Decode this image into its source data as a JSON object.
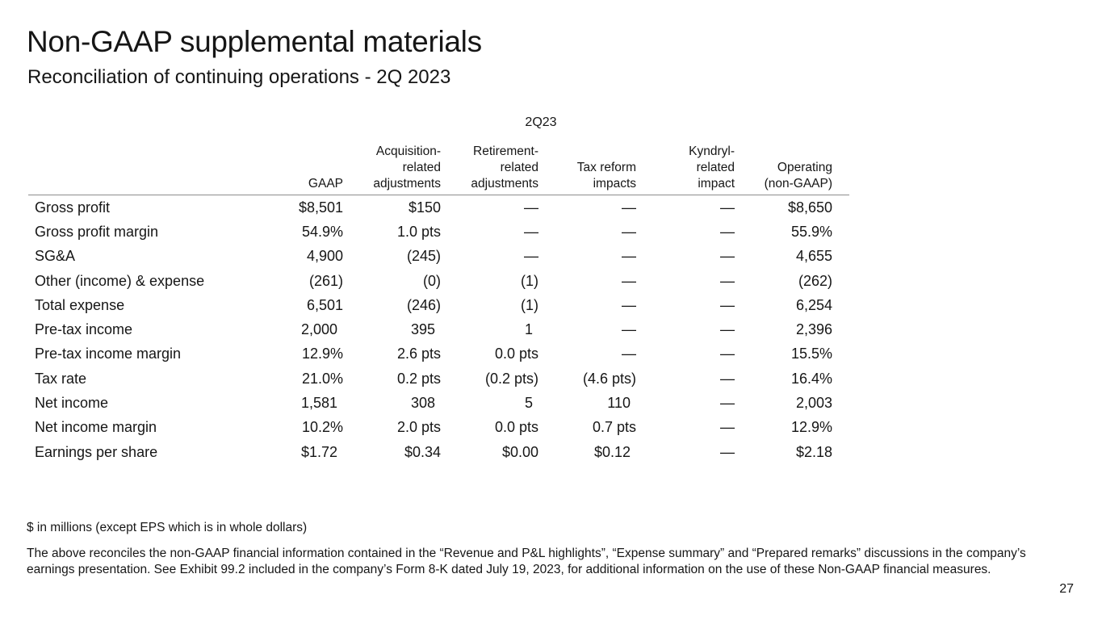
{
  "slide": {
    "title": "Non-GAAP supplemental materials",
    "subtitle": "Reconciliation of continuing operations - 2Q 2023",
    "page_number": "27"
  },
  "table": {
    "period": "2Q23",
    "columns": [
      "",
      "GAAP",
      "Acquisition-\nrelated\nadjustments",
      "Retirement-\nrelated\nadjustments",
      "Tax reform\nimpacts",
      "Kyndryl-\nrelated\nimpact",
      "Operating\n(non-GAAP)"
    ],
    "rows": [
      {
        "label": "Gross profit",
        "values": [
          "$8,501",
          "$150",
          "—",
          "—",
          "—",
          "$8,650"
        ]
      },
      {
        "label": "Gross profit margin",
        "values": [
          "54.9%",
          "1.0 pts",
          "—",
          "—",
          "—",
          "55.9%"
        ]
      },
      {
        "label": "SG&A",
        "values": [
          "4,900",
          "(245)",
          "—",
          "—",
          "—",
          "4,655"
        ]
      },
      {
        "label": "Other (income) & expense",
        "values": [
          "(261)",
          "(0)",
          "(1)",
          "—",
          "—",
          "(262)"
        ]
      },
      {
        "label": "Total expense",
        "values": [
          "6,501",
          "(246)",
          "(1)",
          "—",
          "—",
          "6,254"
        ]
      },
      {
        "label": "Pre-tax income",
        "values": [
          "2,000",
          "395",
          "1",
          "—",
          "—",
          "2,396"
        ]
      },
      {
        "label": "Pre-tax income margin",
        "values": [
          "12.9%",
          "2.6 pts",
          "0.0 pts",
          "—",
          "—",
          "15.5%"
        ]
      },
      {
        "label": "Tax rate",
        "values": [
          "21.0%",
          "0.2 pts",
          "(0.2 pts)",
          "(4.6 pts)",
          "—",
          "16.4%"
        ]
      },
      {
        "label": "Net income",
        "values": [
          "1,581",
          "308",
          "5",
          "110",
          "—",
          "2,003"
        ]
      },
      {
        "label": "Net income margin",
        "values": [
          "10.2%",
          "2.0 pts",
          "0.0 pts",
          "0.7 pts",
          "—",
          "12.9%"
        ]
      },
      {
        "label": "Earnings per share",
        "values": [
          "$1.72",
          "$0.34",
          "$0.00",
          "$0.12",
          "—",
          "$2.18"
        ]
      }
    ]
  },
  "footnotes": {
    "units": "$ in millions (except EPS which is in whole dollars)",
    "disclaimer": "The above reconciles the non-GAAP financial information contained in the “Revenue and P&L highlights”, “Expense summary” and “Prepared remarks” discussions in the company’s earnings presentation.  See Exhibit 99.2 included in the company’s Form 8-K dated July 19, 2023, for additional information on the use of these Non-GAAP financial measures."
  }
}
